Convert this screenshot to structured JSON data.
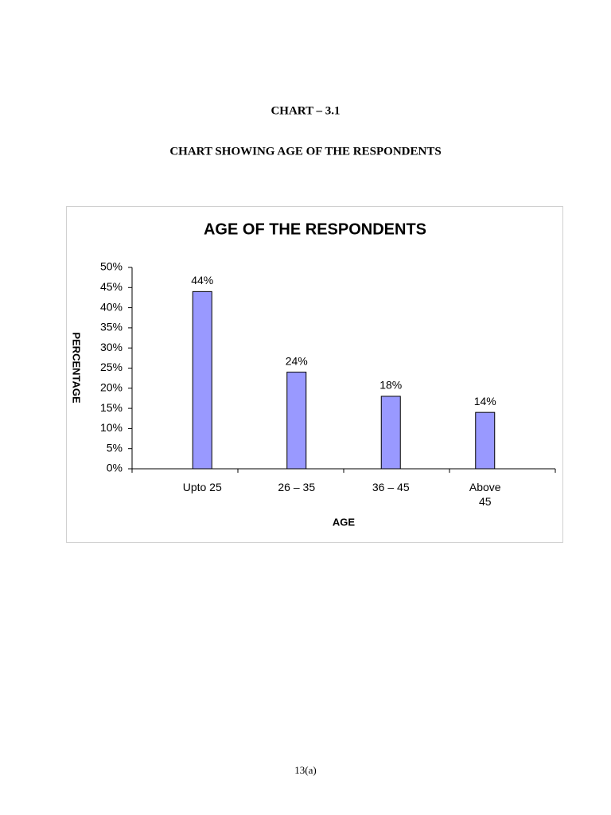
{
  "heading": "CHART – 3.1",
  "subheading": "CHART SHOWING AGE OF THE RESPONDENTS",
  "chart_data": {
    "type": "bar",
    "title": "AGE OF THE RESPONDENTS",
    "x_label": "AGE",
    "y_label": "PERCENTAGE",
    "categories": [
      "Upto 25",
      "26 – 35",
      "36 – 45",
      "Above 45"
    ],
    "values": [
      44,
      24,
      18,
      14
    ],
    "value_labels": [
      "44%",
      "24%",
      "18%",
      "14%"
    ],
    "color": "#9999ff",
    "ylim": [
      0,
      50
    ],
    "yticks": [
      {
        "value": 0,
        "label": "0%"
      },
      {
        "value": 5,
        "label": "5%"
      },
      {
        "value": 10,
        "label": "10%"
      },
      {
        "value": 15,
        "label": "15%"
      },
      {
        "value": 20,
        "label": "20%"
      },
      {
        "value": 25,
        "label": "25%"
      },
      {
        "value": 30,
        "label": "30%"
      },
      {
        "value": 35,
        "label": "35%"
      },
      {
        "value": 40,
        "label": "40%"
      },
      {
        "value": 45,
        "label": "45%"
      },
      {
        "value": 50,
        "label": "50%"
      }
    ],
    "grid": false
  },
  "page_number": "13(a)"
}
